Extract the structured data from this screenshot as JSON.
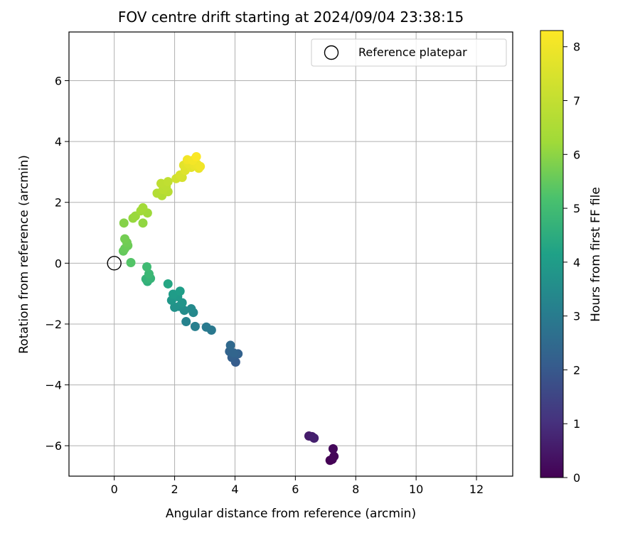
{
  "chart_data": {
    "type": "scatter",
    "title": "FOV centre drift starting at 2024/09/04 23:38:15",
    "xlabel": "Angular distance from reference (arcmin)",
    "ylabel": "Rotation from reference (arcmin)",
    "xlim": [
      -1.5,
      13.2
    ],
    "ylim": [
      -7.0,
      7.6
    ],
    "xticks": [
      0,
      2,
      4,
      6,
      8,
      10,
      12
    ],
    "yticks": [
      -6,
      -4,
      -2,
      0,
      2,
      4,
      6
    ],
    "grid": true,
    "legend": {
      "position": "top-right",
      "entries": [
        "Reference platepar"
      ]
    },
    "reference_point": {
      "x": 0,
      "y": 0,
      "label": "Reference platepar"
    },
    "colorbar": {
      "label": "Hours from first FF file",
      "colormap": "viridis",
      "range": [
        0,
        8.3
      ],
      "ticks": [
        0,
        1,
        2,
        3,
        4,
        5,
        6,
        7,
        8
      ]
    },
    "points": [
      {
        "x": 7.15,
        "y": -6.48,
        "c": 0.0
      },
      {
        "x": 7.22,
        "y": -6.45,
        "c": 0.05
      },
      {
        "x": 7.28,
        "y": -6.35,
        "c": 0.1
      },
      {
        "x": 7.25,
        "y": -6.1,
        "c": 0.15
      },
      {
        "x": 6.45,
        "y": -5.68,
        "c": 0.55
      },
      {
        "x": 6.55,
        "y": -5.7,
        "c": 0.6
      },
      {
        "x": 6.62,
        "y": -5.75,
        "c": 0.65
      },
      {
        "x": 4.02,
        "y": -3.25,
        "c": 2.1
      },
      {
        "x": 3.9,
        "y": -3.1,
        "c": 2.2
      },
      {
        "x": 4.1,
        "y": -2.98,
        "c": 2.25
      },
      {
        "x": 3.82,
        "y": -2.9,
        "c": 2.3
      },
      {
        "x": 3.95,
        "y": -2.95,
        "c": 2.35
      },
      {
        "x": 3.85,
        "y": -2.7,
        "c": 2.45
      },
      {
        "x": 3.22,
        "y": -2.2,
        "c": 2.9
      },
      {
        "x": 3.05,
        "y": -2.1,
        "c": 2.95
      },
      {
        "x": 2.68,
        "y": -2.08,
        "c": 3.1
      },
      {
        "x": 2.38,
        "y": -1.92,
        "c": 3.2
      },
      {
        "x": 2.62,
        "y": -1.62,
        "c": 3.4
      },
      {
        "x": 2.55,
        "y": -1.5,
        "c": 3.45
      },
      {
        "x": 2.32,
        "y": -1.55,
        "c": 3.5
      },
      {
        "x": 2.15,
        "y": -1.42,
        "c": 3.6
      },
      {
        "x": 2.0,
        "y": -1.45,
        "c": 3.7
      },
      {
        "x": 2.25,
        "y": -1.3,
        "c": 3.75
      },
      {
        "x": 1.9,
        "y": -1.22,
        "c": 3.85
      },
      {
        "x": 2.1,
        "y": -1.1,
        "c": 3.9
      },
      {
        "x": 1.95,
        "y": -1.02,
        "c": 4.0
      },
      {
        "x": 2.18,
        "y": -0.92,
        "c": 4.05
      },
      {
        "x": 1.78,
        "y": -0.68,
        "c": 4.3
      },
      {
        "x": 1.1,
        "y": -0.6,
        "c": 4.6
      },
      {
        "x": 1.05,
        "y": -0.52,
        "c": 4.7
      },
      {
        "x": 1.2,
        "y": -0.5,
        "c": 4.75
      },
      {
        "x": 1.15,
        "y": -0.35,
        "c": 4.85
      },
      {
        "x": 1.08,
        "y": -0.12,
        "c": 4.95
      },
      {
        "x": 0.55,
        "y": 0.02,
        "c": 5.3
      },
      {
        "x": 0.3,
        "y": 0.4,
        "c": 5.5
      },
      {
        "x": 0.35,
        "y": 0.48,
        "c": 5.55
      },
      {
        "x": 0.45,
        "y": 0.58,
        "c": 5.6
      },
      {
        "x": 0.42,
        "y": 0.68,
        "c": 5.65
      },
      {
        "x": 0.35,
        "y": 0.8,
        "c": 5.7
      },
      {
        "x": 0.32,
        "y": 1.32,
        "c": 5.9
      },
      {
        "x": 0.95,
        "y": 1.32,
        "c": 6.05
      },
      {
        "x": 0.62,
        "y": 1.48,
        "c": 6.1
      },
      {
        "x": 0.7,
        "y": 1.55,
        "c": 6.15
      },
      {
        "x": 1.1,
        "y": 1.65,
        "c": 6.2
      },
      {
        "x": 0.88,
        "y": 1.72,
        "c": 6.25
      },
      {
        "x": 0.95,
        "y": 1.82,
        "c": 6.3
      },
      {
        "x": 1.58,
        "y": 2.22,
        "c": 6.6
      },
      {
        "x": 1.42,
        "y": 2.3,
        "c": 6.65
      },
      {
        "x": 1.78,
        "y": 2.35,
        "c": 6.75
      },
      {
        "x": 1.62,
        "y": 2.42,
        "c": 6.8
      },
      {
        "x": 1.72,
        "y": 2.52,
        "c": 6.85
      },
      {
        "x": 1.55,
        "y": 2.62,
        "c": 6.9
      },
      {
        "x": 1.78,
        "y": 2.68,
        "c": 6.95
      },
      {
        "x": 2.05,
        "y": 2.78,
        "c": 7.3
      },
      {
        "x": 2.25,
        "y": 2.82,
        "c": 7.4
      },
      {
        "x": 2.18,
        "y": 2.9,
        "c": 7.45
      },
      {
        "x": 2.35,
        "y": 3.05,
        "c": 7.6
      },
      {
        "x": 2.3,
        "y": 3.22,
        "c": 7.7
      },
      {
        "x": 2.55,
        "y": 3.15,
        "c": 7.75
      },
      {
        "x": 2.45,
        "y": 3.28,
        "c": 7.8
      },
      {
        "x": 2.8,
        "y": 3.12,
        "c": 7.85
      },
      {
        "x": 2.65,
        "y": 3.22,
        "c": 7.9
      },
      {
        "x": 2.75,
        "y": 3.25,
        "c": 7.95
      },
      {
        "x": 2.85,
        "y": 3.18,
        "c": 8.0
      },
      {
        "x": 2.42,
        "y": 3.4,
        "c": 8.05
      },
      {
        "x": 2.6,
        "y": 3.38,
        "c": 8.1
      },
      {
        "x": 2.72,
        "y": 3.5,
        "c": 8.25
      }
    ]
  }
}
